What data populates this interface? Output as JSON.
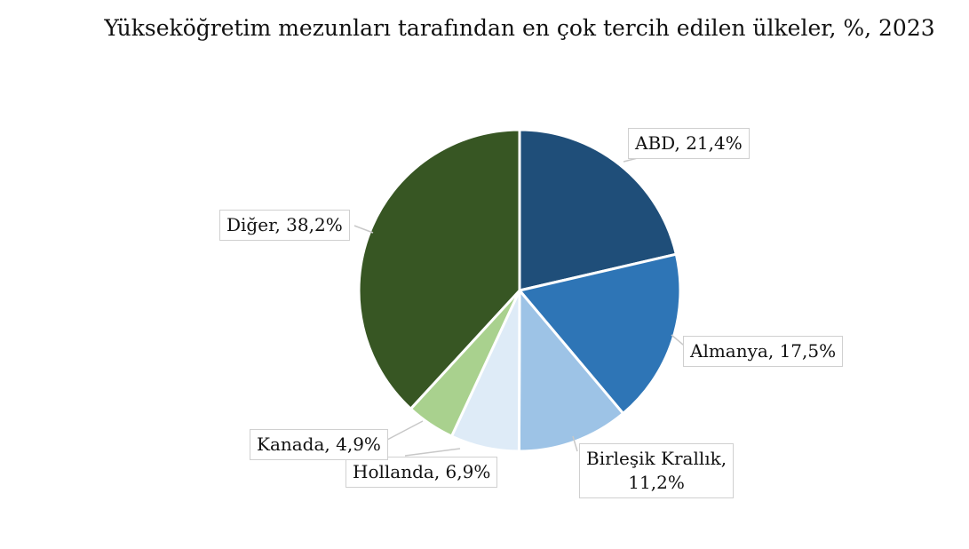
{
  "chart_data": {
    "type": "pie",
    "title": "Yükseköğretim mezunları tarafından en çok tercih edilen ülkeler, %, 2023",
    "slices": [
      {
        "label": "ABD",
        "value": 21.4,
        "value_text": "21,4%",
        "color": "#1f4e79"
      },
      {
        "label": "Almanya",
        "value": 17.5,
        "value_text": "17,5%",
        "color": "#2e75b6"
      },
      {
        "label": "Birleşik Krallık",
        "value": 11.2,
        "value_text": "11,2%",
        "color": "#9dc3e6"
      },
      {
        "label": "Hollanda",
        "value": 6.9,
        "value_text": "6,9%",
        "color": "#deebf7"
      },
      {
        "label": "Kanada",
        "value": 4.9,
        "value_text": "4,9%",
        "color": "#a9d18e"
      },
      {
        "label": "Diğer",
        "value": 38.2,
        "value_text": "38,2%",
        "color": "#375623"
      }
    ],
    "start": "12 o'clock",
    "direction": "clockwise",
    "legend": "none",
    "data_labels": "callout"
  }
}
